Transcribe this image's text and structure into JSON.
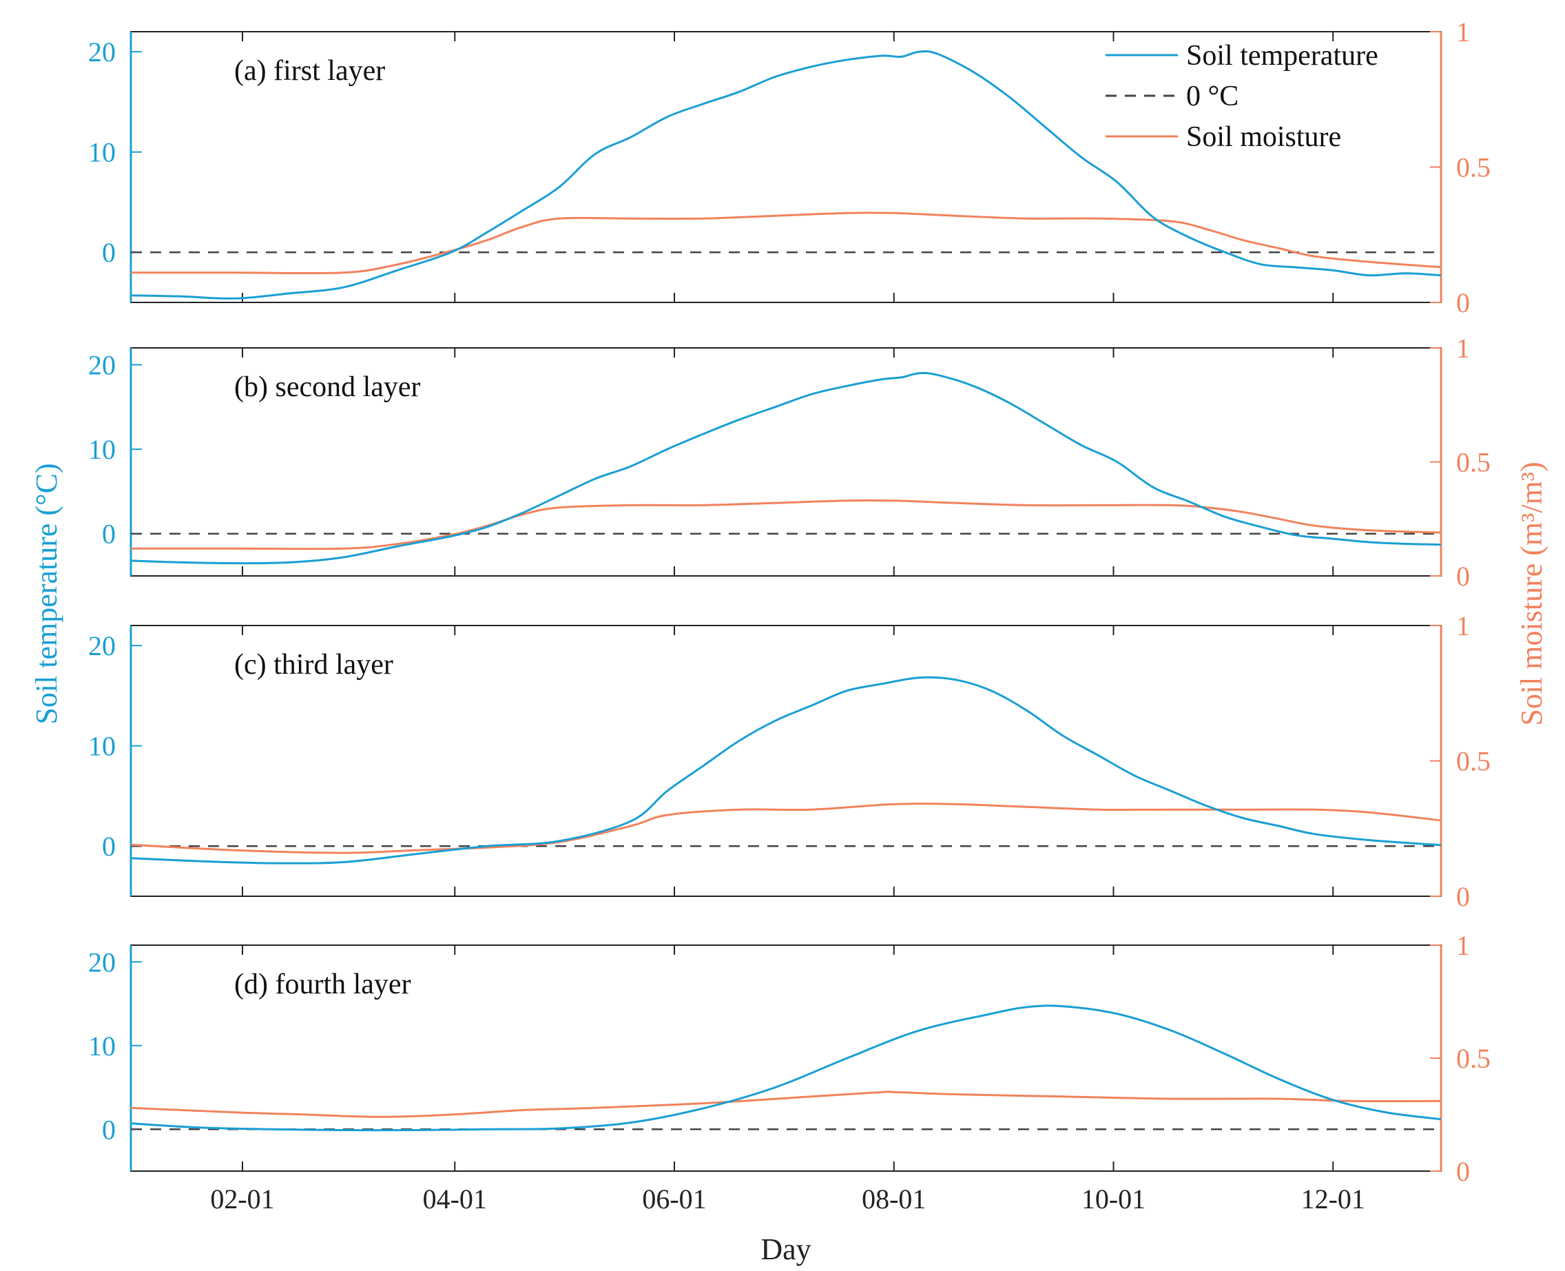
{
  "chart_data": {
    "type": "line",
    "xlabel": "Day",
    "ylabel_left": "Soil temperature (°C)",
    "ylabel_right": "Soil moisture (m³/m³)",
    "x_range_day_of_year": [
      1,
      365
    ],
    "x_ticks": [
      {
        "label": "02-01",
        "day": 32
      },
      {
        "label": "04-01",
        "day": 91
      },
      {
        "label": "06-01",
        "day": 152
      },
      {
        "label": "08-01",
        "day": 213
      },
      {
        "label": "10-01",
        "day": 274
      },
      {
        "label": "12-01",
        "day": 335
      }
    ],
    "y_left": {
      "range": [
        -5,
        22
      ],
      "ticks": [
        "0",
        "10",
        "20"
      ]
    },
    "y_right": {
      "range": [
        0,
        1
      ],
      "ticks": [
        "0",
        "0.5",
        "1"
      ]
    },
    "colors": {
      "temperature": "#1a9fd4",
      "moisture": "#f2825c",
      "zero_line": "#444444",
      "axes": "#222222"
    },
    "legend": {
      "position": "top-right",
      "entries": [
        "Soil temperature",
        "0 °C",
        "Soil moisture"
      ]
    },
    "panels": [
      {
        "label": "(a) first layer",
        "temp_days": [
          1,
          15,
          30,
          45,
          60,
          75,
          90,
          100,
          110,
          120,
          130,
          140,
          150,
          160,
          170,
          180,
          190,
          200,
          210,
          215,
          220,
          225,
          235,
          245,
          255,
          265,
          275,
          285,
          295,
          305,
          315,
          325,
          335,
          345,
          355,
          365
        ],
        "temp_values": [
          -4.3,
          -4.4,
          -4.6,
          -4.1,
          -3.5,
          -1.8,
          0.0,
          2.0,
          4.2,
          6.5,
          9.8,
          11.5,
          13.5,
          14.8,
          16.0,
          17.5,
          18.5,
          19.2,
          19.6,
          19.5,
          20.0,
          19.8,
          18.0,
          15.5,
          12.5,
          9.5,
          7.0,
          3.5,
          1.5,
          0.0,
          -1.2,
          -1.5,
          -1.8,
          -2.3,
          -2.1,
          -2.3
        ],
        "moisture_days": [
          1,
          30,
          60,
          75,
          90,
          100,
          110,
          120,
          140,
          160,
          180,
          200,
          213,
          230,
          250,
          270,
          290,
          300,
          310,
          320,
          330,
          345,
          365
        ],
        "moisture_values": [
          0.11,
          0.11,
          0.11,
          0.14,
          0.19,
          0.23,
          0.28,
          0.31,
          0.31,
          0.31,
          0.32,
          0.33,
          0.33,
          0.32,
          0.31,
          0.31,
          0.3,
          0.27,
          0.23,
          0.2,
          0.17,
          0.15,
          0.13
        ]
      },
      {
        "label": "(b) second layer",
        "temp_days": [
          1,
          15,
          30,
          45,
          60,
          75,
          90,
          100,
          110,
          120,
          130,
          140,
          150,
          160,
          170,
          180,
          190,
          200,
          210,
          215,
          220,
          225,
          235,
          245,
          255,
          265,
          275,
          285,
          295,
          305,
          315,
          325,
          335,
          345,
          355,
          365
        ],
        "temp_values": [
          -3.2,
          -3.4,
          -3.5,
          -3.4,
          -2.8,
          -1.5,
          -0.3,
          0.8,
          2.5,
          4.5,
          6.5,
          8.0,
          10.0,
          11.8,
          13.5,
          15.0,
          16.5,
          17.5,
          18.3,
          18.5,
          19.0,
          18.8,
          17.5,
          15.5,
          13.0,
          10.5,
          8.5,
          5.5,
          3.8,
          2.0,
          0.8,
          -0.2,
          -0.6,
          -1.0,
          -1.2,
          -1.3
        ],
        "moisture_days": [
          1,
          30,
          60,
          75,
          90,
          100,
          110,
          120,
          140,
          160,
          180,
          200,
          213,
          230,
          250,
          270,
          290,
          300,
          310,
          320,
          330,
          345,
          365
        ],
        "moisture_values": [
          0.12,
          0.12,
          0.12,
          0.14,
          0.18,
          0.22,
          0.27,
          0.3,
          0.31,
          0.31,
          0.32,
          0.33,
          0.33,
          0.32,
          0.31,
          0.31,
          0.31,
          0.3,
          0.28,
          0.25,
          0.22,
          0.2,
          0.19
        ]
      },
      {
        "label": "(c) third layer",
        "temp_days": [
          1,
          20,
          40,
          60,
          80,
          100,
          120,
          140,
          150,
          160,
          170,
          180,
          190,
          200,
          210,
          220,
          230,
          240,
          250,
          260,
          270,
          280,
          290,
          300,
          310,
          320,
          330,
          345,
          365
        ],
        "temp_values": [
          -1.2,
          -1.5,
          -1.7,
          -1.6,
          -0.8,
          0.0,
          0.5,
          2.5,
          5.5,
          8.0,
          10.5,
          12.5,
          14.0,
          15.5,
          16.2,
          16.8,
          16.6,
          15.5,
          13.5,
          11.0,
          9.0,
          7.0,
          5.5,
          4.0,
          2.8,
          2.0,
          1.2,
          0.6,
          0.1
        ],
        "moisture_days": [
          1,
          30,
          60,
          80,
          100,
          120,
          140,
          150,
          170,
          190,
          213,
          230,
          250,
          270,
          290,
          310,
          330,
          345,
          365
        ],
        "moisture_values": [
          0.19,
          0.17,
          0.16,
          0.17,
          0.18,
          0.2,
          0.26,
          0.3,
          0.32,
          0.32,
          0.34,
          0.34,
          0.33,
          0.32,
          0.32,
          0.32,
          0.32,
          0.31,
          0.28
        ]
      },
      {
        "label": "(d) fourth layer",
        "temp_days": [
          1,
          20,
          40,
          60,
          80,
          100,
          120,
          140,
          160,
          180,
          200,
          220,
          240,
          250,
          260,
          275,
          290,
          305,
          320,
          335,
          350,
          365
        ],
        "temp_values": [
          0.7,
          0.2,
          0.0,
          -0.1,
          -0.1,
          0.0,
          0.1,
          0.8,
          2.5,
          5.0,
          8.5,
          11.8,
          13.8,
          14.6,
          14.7,
          13.8,
          11.8,
          9.0,
          6.0,
          3.5,
          2.0,
          1.2
        ],
        "moisture_days": [
          1,
          30,
          50,
          70,
          90,
          110,
          130,
          160,
          190,
          210,
          213,
          230,
          260,
          290,
          320,
          340,
          365
        ],
        "moisture_values": [
          0.28,
          0.26,
          0.25,
          0.24,
          0.25,
          0.27,
          0.28,
          0.3,
          0.33,
          0.35,
          0.35,
          0.34,
          0.33,
          0.32,
          0.32,
          0.31,
          0.31
        ]
      }
    ]
  }
}
